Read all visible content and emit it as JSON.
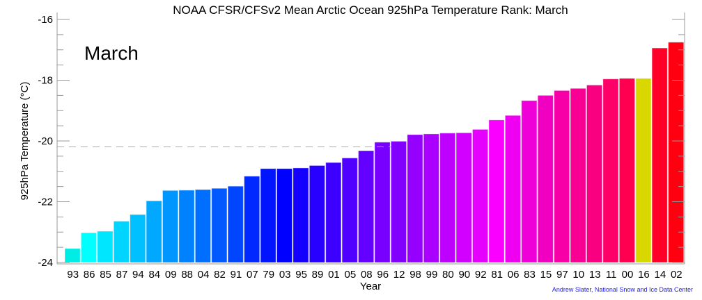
{
  "chart_data": {
    "type": "bar",
    "title": "NOAA CFSR/CFSv2 Mean Arctic Ocean 925hPa Temperature Rank: March",
    "annotation": "March",
    "xlabel": "Year",
    "ylabel": "925hPa Temperature (°C)",
    "ylim": [
      -24,
      -16
    ],
    "yticks": [
      -24,
      -22,
      -20,
      -18,
      -16
    ],
    "ytick_labels": [
      "-24",
      "-22",
      "-20",
      "-18",
      "-16"
    ],
    "reference_line": -20.19,
    "categories": [
      "93",
      "86",
      "85",
      "87",
      "94",
      "84",
      "09",
      "88",
      "04",
      "82",
      "91",
      "07",
      "79",
      "03",
      "95",
      "89",
      "01",
      "05",
      "08",
      "96",
      "12",
      "98",
      "99",
      "80",
      "90",
      "92",
      "81",
      "06",
      "83",
      "15",
      "97",
      "10",
      "13",
      "11",
      "00",
      "16",
      "14",
      "02"
    ],
    "values": [
      -23.54,
      -23.02,
      -22.97,
      -22.64,
      -22.42,
      -21.97,
      -21.63,
      -21.62,
      -21.6,
      -21.56,
      -21.49,
      -21.16,
      -20.91,
      -20.91,
      -20.89,
      -20.81,
      -20.71,
      -20.56,
      -20.32,
      -20.04,
      -20.01,
      -19.79,
      -19.77,
      -19.74,
      -19.73,
      -19.62,
      -19.31,
      -19.16,
      -18.67,
      -18.5,
      -18.34,
      -18.27,
      -18.16,
      -17.96,
      -17.94,
      -17.94,
      -16.94,
      -16.75
    ],
    "colors": [
      "#00ece4",
      "#00ffff",
      "#00e6ff",
      "#00d4ff",
      "#00c0ff",
      "#00a8ff",
      "#0096ff",
      "#0082ff",
      "#006eff",
      "#005aff",
      "#0046ff",
      "#0028ff",
      "#0014ff",
      "#0000ff",
      "#1400ff",
      "#2800ff",
      "#3c00ff",
      "#5000ff",
      "#6400ff",
      "#7800ff",
      "#8200ff",
      "#9600ff",
      "#aa00ff",
      "#be00ff",
      "#d200ff",
      "#e600ff",
      "#fa00ff",
      "#f000f0",
      "#f000d8",
      "#f000c0",
      "#f800a8",
      "#f80094",
      "#f80080",
      "#ff0068",
      "#ff0050",
      "#d8d800",
      "#ff0028",
      "#ff0010"
    ],
    "grid": false
  },
  "credit": "Andrew Slater, National Snow and Ice Data Center"
}
